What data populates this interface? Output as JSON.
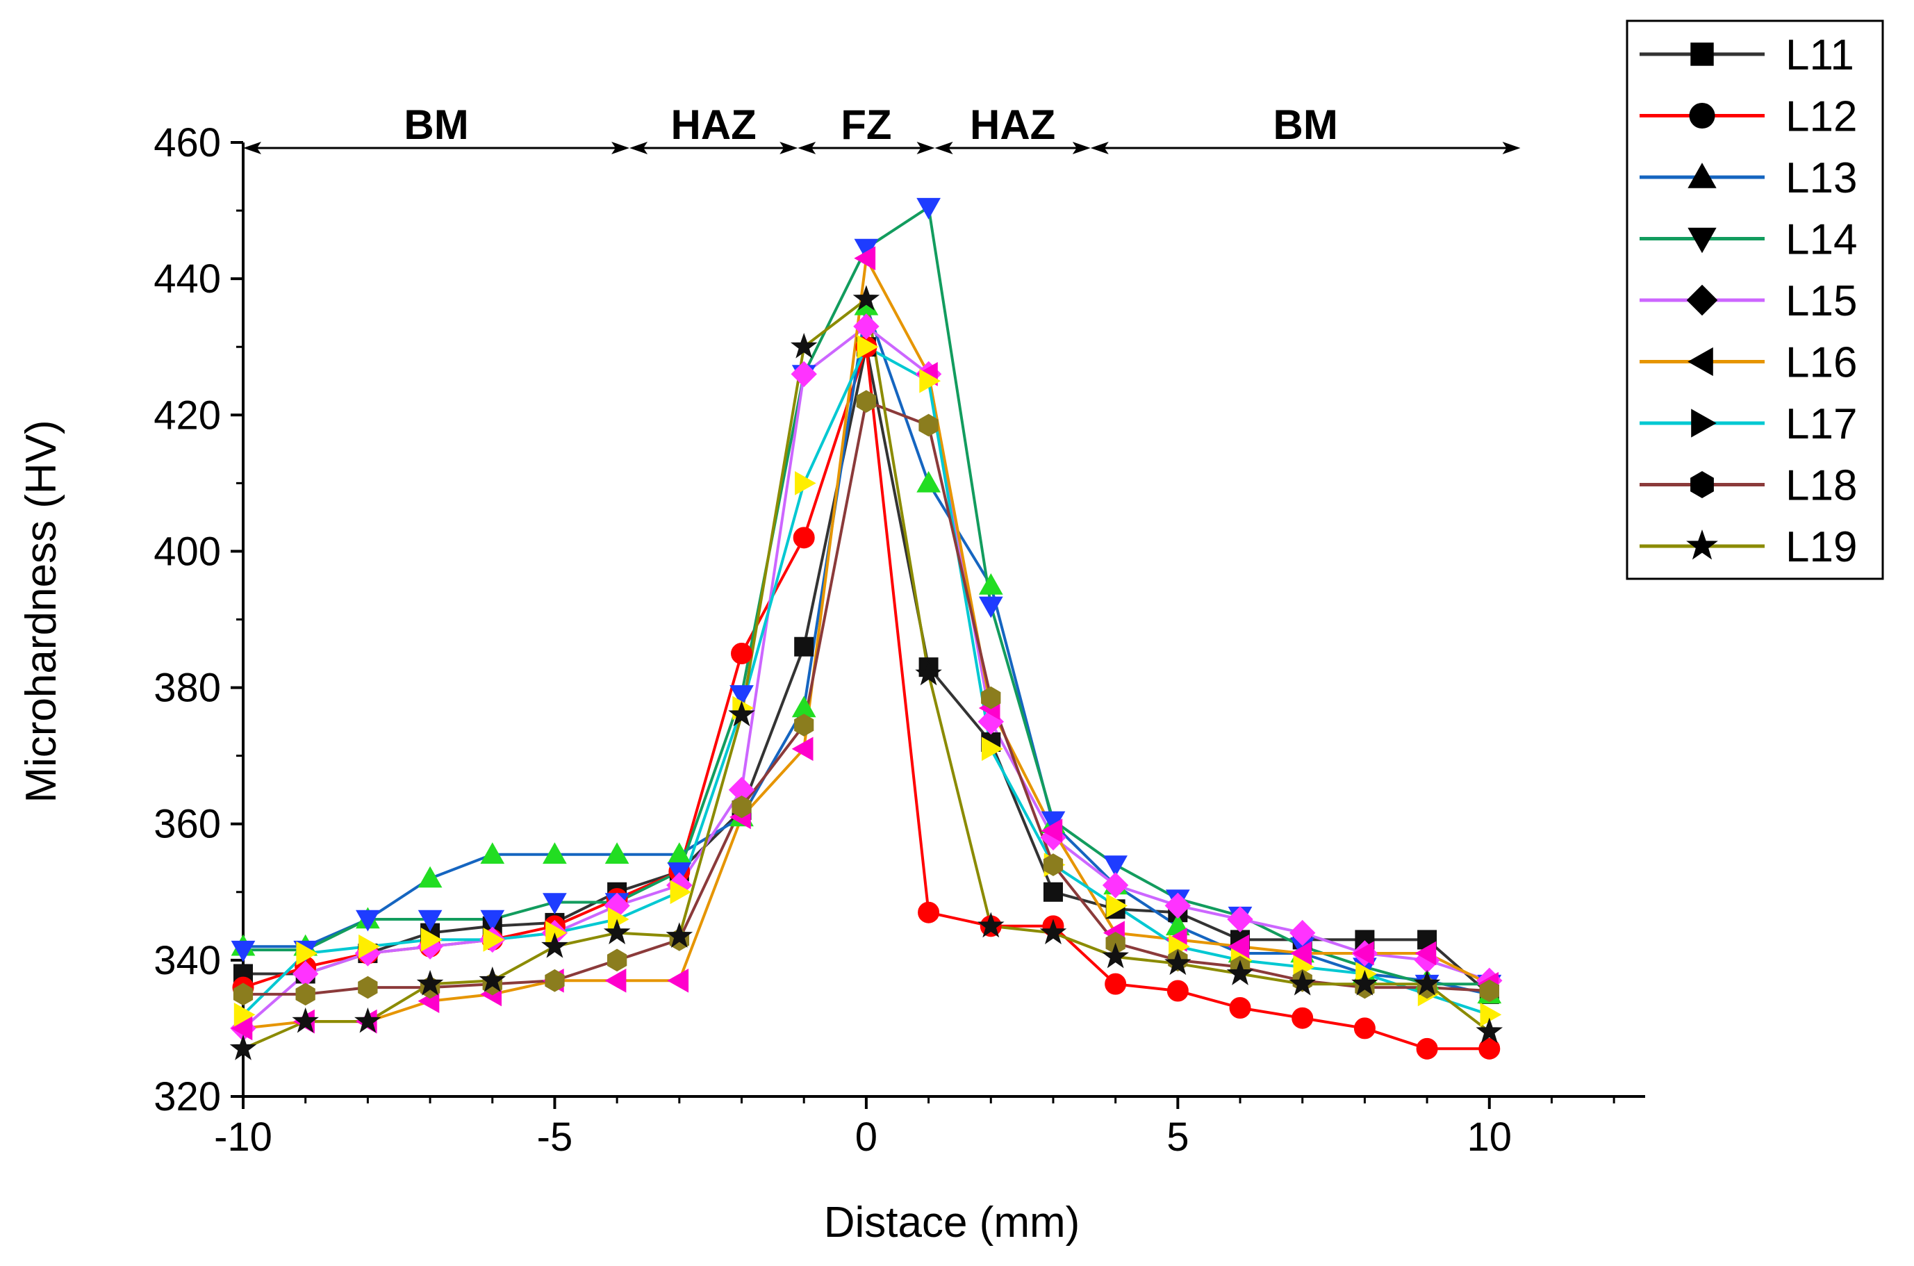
{
  "chart_data": {
    "type": "line",
    "xlabel": "Distace (mm)",
    "ylabel": "Microhardness (HV)",
    "xlim": [
      -10,
      12.5
    ],
    "ylim": [
      320,
      460
    ],
    "x_ticks": [
      -10,
      -5,
      0,
      5,
      10
    ],
    "y_ticks": [
      320,
      340,
      360,
      380,
      400,
      420,
      440,
      460
    ],
    "x_tick_labels": [
      "-10",
      "-5",
      "0",
      "5",
      "10"
    ],
    "y_tick_labels": [
      "320",
      "340",
      "360",
      "380",
      "400",
      "420",
      "440",
      "460"
    ],
    "grid": false,
    "legend_position": "top-right, outside plot",
    "x": [
      -10,
      -9,
      -8,
      -7,
      -6,
      -5,
      -4,
      -3,
      -2,
      -1,
      0,
      1,
      2,
      3,
      4,
      5,
      6,
      7,
      8,
      9,
      10
    ],
    "zones": [
      {
        "label": "BM",
        "from": -10,
        "to": -3.8
      },
      {
        "label": "HAZ",
        "from": -3.8,
        "to": -1.1
      },
      {
        "label": "FZ",
        "from": -1.1,
        "to": 1.1
      },
      {
        "label": "HAZ",
        "from": 1.1,
        "to": 3.6
      },
      {
        "label": "BM",
        "from": 3.6,
        "to": 10.5
      }
    ],
    "series": [
      {
        "name": "L11",
        "color": "#333333",
        "marker": "square",
        "values": [
          338,
          338,
          341,
          344,
          345,
          345.5,
          350,
          353,
          362,
          386,
          430,
          383,
          372,
          350,
          347.5,
          347,
          343,
          343,
          343,
          343,
          335
        ]
      },
      {
        "name": "L12",
        "color": "#ff0000",
        "marker": "circle",
        "values": [
          336,
          339,
          341,
          342,
          343,
          345,
          349,
          353,
          385,
          402,
          430,
          347,
          345,
          345,
          336.5,
          335.5,
          333,
          331.5,
          330,
          327,
          327
        ]
      },
      {
        "name": "L13",
        "color": "#1565c0",
        "marker": "triangle-up",
        "values": [
          342,
          342,
          346,
          352,
          355.5,
          355.5,
          355.5,
          355.5,
          361,
          377,
          436,
          410,
          395,
          360,
          351,
          345,
          341,
          341,
          338,
          337,
          335
        ]
      },
      {
        "name": "L14",
        "color": "#129c5e",
        "marker": "triangle-down",
        "values": [
          341.5,
          341.5,
          346,
          346,
          346,
          348.5,
          348.5,
          353,
          379,
          426,
          444.5,
          450.5,
          392,
          360.5,
          354,
          349,
          346.5,
          342,
          339,
          336.5,
          336.5
        ]
      },
      {
        "name": "L15",
        "color": "#cc66ff",
        "marker": "diamond",
        "values": [
          330,
          338,
          341,
          342,
          343,
          344,
          348,
          351,
          365,
          426,
          433,
          426,
          375,
          358,
          351,
          348,
          346,
          344,
          341,
          340,
          337
        ]
      },
      {
        "name": "L16",
        "color": "#e69500",
        "marker": "triangle-left",
        "values": [
          330,
          331,
          331,
          334,
          335,
          337,
          337,
          337,
          361,
          371,
          443,
          426,
          377,
          359,
          344,
          343,
          342,
          341,
          341,
          341,
          336.5
        ]
      },
      {
        "name": "L17",
        "color": "#00c8d2",
        "marker": "triangle-right",
        "values": [
          332,
          341,
          342,
          343,
          343,
          344,
          346,
          350,
          377,
          410,
          430,
          425,
          371,
          354,
          348,
          342,
          340,
          339,
          338,
          335,
          332
        ]
      },
      {
        "name": "L18",
        "color": "#8b3a3a",
        "marker": "hexagon",
        "values": [
          335,
          335,
          336,
          336,
          336.5,
          337,
          340,
          343,
          362.5,
          374.5,
          422,
          418.5,
          378.5,
          354,
          342.5,
          340,
          339,
          337,
          336,
          336,
          335.5
        ]
      },
      {
        "name": "L19",
        "color": "#8b8b00",
        "marker": "star",
        "values": [
          327,
          331,
          331,
          336.5,
          337,
          342,
          344,
          343.5,
          376,
          430,
          437,
          382,
          345,
          344,
          340.5,
          339.5,
          338,
          336.5,
          336.5,
          336.5,
          329.5
        ]
      }
    ]
  }
}
